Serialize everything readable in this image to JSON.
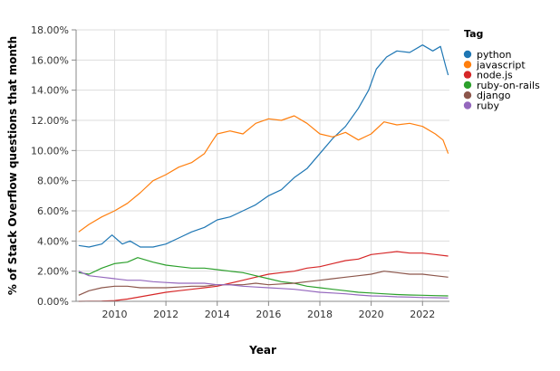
{
  "chart_data": {
    "type": "line",
    "xlabel": "Year",
    "ylabel": "% of Stack Overflow questions that month",
    "xlim": [
      2008.5,
      2023.05
    ],
    "ylim": [
      0,
      18
    ],
    "x_ticks": [
      {
        "value": 2010,
        "label": "2010"
      },
      {
        "value": 2012,
        "label": "2012"
      },
      {
        "value": 2014,
        "label": "2014"
      },
      {
        "value": 2016,
        "label": "2016"
      },
      {
        "value": 2018,
        "label": "2018"
      },
      {
        "value": 2020,
        "label": "2020"
      },
      {
        "value": 2022,
        "label": "2022"
      }
    ],
    "y_ticks": [
      {
        "value": 0,
        "label": "0.00%"
      },
      {
        "value": 2,
        "label": "2.00%"
      },
      {
        "value": 4,
        "label": "4.00%"
      },
      {
        "value": 6,
        "label": "6.00%"
      },
      {
        "value": 8,
        "label": "8.00%"
      },
      {
        "value": 10,
        "label": "10.00%"
      },
      {
        "value": 12,
        "label": "12.00%"
      },
      {
        "value": 14,
        "label": "14.00%"
      },
      {
        "value": 16,
        "label": "16.00%"
      },
      {
        "value": 18,
        "label": "18.00%"
      }
    ],
    "grid": true,
    "legend": {
      "title": "Tag",
      "placement": "right"
    },
    "series": [
      {
        "name": "python",
        "color": "#1f77b4",
        "points": [
          [
            2008.6,
            3.7
          ],
          [
            2009.0,
            3.6
          ],
          [
            2009.5,
            3.8
          ],
          [
            2009.9,
            4.4
          ],
          [
            2010.3,
            3.8
          ],
          [
            2010.6,
            4.0
          ],
          [
            2011.0,
            3.6
          ],
          [
            2011.5,
            3.6
          ],
          [
            2012.0,
            3.8
          ],
          [
            2012.5,
            4.2
          ],
          [
            2013.0,
            4.6
          ],
          [
            2013.5,
            4.9
          ],
          [
            2014.0,
            5.4
          ],
          [
            2014.5,
            5.6
          ],
          [
            2015.0,
            6.0
          ],
          [
            2015.5,
            6.4
          ],
          [
            2016.0,
            7.0
          ],
          [
            2016.5,
            7.4
          ],
          [
            2017.0,
            8.2
          ],
          [
            2017.5,
            8.8
          ],
          [
            2018.0,
            9.8
          ],
          [
            2018.5,
            10.8
          ],
          [
            2019.0,
            11.6
          ],
          [
            2019.5,
            12.8
          ],
          [
            2019.9,
            14.0
          ],
          [
            2020.2,
            15.4
          ],
          [
            2020.6,
            16.2
          ],
          [
            2021.0,
            16.6
          ],
          [
            2021.5,
            16.5
          ],
          [
            2022.0,
            17.0
          ],
          [
            2022.4,
            16.6
          ],
          [
            2022.7,
            16.9
          ],
          [
            2022.9,
            15.6
          ],
          [
            2023.0,
            15.0
          ]
        ]
      },
      {
        "name": "javascript",
        "color": "#ff7f0e",
        "points": [
          [
            2008.6,
            4.6
          ],
          [
            2009.0,
            5.1
          ],
          [
            2009.5,
            5.6
          ],
          [
            2010.0,
            6.0
          ],
          [
            2010.5,
            6.5
          ],
          [
            2011.0,
            7.2
          ],
          [
            2011.5,
            8.0
          ],
          [
            2012.0,
            8.4
          ],
          [
            2012.5,
            8.9
          ],
          [
            2013.0,
            9.2
          ],
          [
            2013.5,
            9.8
          ],
          [
            2013.8,
            10.6
          ],
          [
            2014.0,
            11.1
          ],
          [
            2014.5,
            11.3
          ],
          [
            2015.0,
            11.1
          ],
          [
            2015.5,
            11.8
          ],
          [
            2016.0,
            12.1
          ],
          [
            2016.5,
            12.0
          ],
          [
            2017.0,
            12.3
          ],
          [
            2017.5,
            11.8
          ],
          [
            2018.0,
            11.1
          ],
          [
            2018.5,
            10.9
          ],
          [
            2019.0,
            11.2
          ],
          [
            2019.5,
            10.7
          ],
          [
            2020.0,
            11.1
          ],
          [
            2020.5,
            11.9
          ],
          [
            2021.0,
            11.7
          ],
          [
            2021.5,
            11.8
          ],
          [
            2022.0,
            11.6
          ],
          [
            2022.5,
            11.1
          ],
          [
            2022.8,
            10.7
          ],
          [
            2023.0,
            9.8
          ]
        ]
      },
      {
        "name": "node.js",
        "color": "#d62728",
        "points": [
          [
            2008.6,
            0.0
          ],
          [
            2009.5,
            0.02
          ],
          [
            2010.0,
            0.05
          ],
          [
            2010.5,
            0.15
          ],
          [
            2011.0,
            0.3
          ],
          [
            2011.5,
            0.45
          ],
          [
            2012.0,
            0.6
          ],
          [
            2012.5,
            0.7
          ],
          [
            2013.0,
            0.8
          ],
          [
            2013.5,
            0.9
          ],
          [
            2014.0,
            1.0
          ],
          [
            2014.5,
            1.2
          ],
          [
            2015.0,
            1.4
          ],
          [
            2015.5,
            1.6
          ],
          [
            2016.0,
            1.8
          ],
          [
            2016.5,
            1.9
          ],
          [
            2017.0,
            2.0
          ],
          [
            2017.5,
            2.2
          ],
          [
            2018.0,
            2.3
          ],
          [
            2018.5,
            2.5
          ],
          [
            2019.0,
            2.7
          ],
          [
            2019.5,
            2.8
          ],
          [
            2020.0,
            3.1
          ],
          [
            2020.5,
            3.2
          ],
          [
            2021.0,
            3.3
          ],
          [
            2021.5,
            3.2
          ],
          [
            2022.0,
            3.2
          ],
          [
            2022.5,
            3.1
          ],
          [
            2023.0,
            3.0
          ]
        ]
      },
      {
        "name": "ruby-on-rails",
        "color": "#2ca02c",
        "points": [
          [
            2008.6,
            1.9
          ],
          [
            2009.0,
            1.8
          ],
          [
            2009.5,
            2.2
          ],
          [
            2010.0,
            2.5
          ],
          [
            2010.5,
            2.6
          ],
          [
            2010.9,
            2.9
          ],
          [
            2011.5,
            2.6
          ],
          [
            2012.0,
            2.4
          ],
          [
            2012.5,
            2.3
          ],
          [
            2013.0,
            2.2
          ],
          [
            2013.5,
            2.2
          ],
          [
            2014.0,
            2.1
          ],
          [
            2014.5,
            2.0
          ],
          [
            2015.0,
            1.9
          ],
          [
            2015.5,
            1.7
          ],
          [
            2016.0,
            1.5
          ],
          [
            2016.5,
            1.3
          ],
          [
            2017.0,
            1.2
          ],
          [
            2017.5,
            1.0
          ],
          [
            2018.0,
            0.9
          ],
          [
            2018.5,
            0.8
          ],
          [
            2019.0,
            0.7
          ],
          [
            2019.5,
            0.6
          ],
          [
            2020.0,
            0.55
          ],
          [
            2020.5,
            0.5
          ],
          [
            2021.0,
            0.45
          ],
          [
            2021.5,
            0.42
          ],
          [
            2022.0,
            0.4
          ],
          [
            2022.5,
            0.38
          ],
          [
            2023.0,
            0.36
          ]
        ]
      },
      {
        "name": "django",
        "color": "#8c564b",
        "points": [
          [
            2008.6,
            0.4
          ],
          [
            2009.0,
            0.7
          ],
          [
            2009.5,
            0.9
          ],
          [
            2010.0,
            1.0
          ],
          [
            2010.5,
            1.0
          ],
          [
            2011.0,
            0.9
          ],
          [
            2011.5,
            0.9
          ],
          [
            2012.0,
            0.9
          ],
          [
            2012.5,
            0.95
          ],
          [
            2013.0,
            1.0
          ],
          [
            2013.5,
            1.0
          ],
          [
            2014.0,
            1.1
          ],
          [
            2014.5,
            1.1
          ],
          [
            2015.0,
            1.1
          ],
          [
            2015.5,
            1.2
          ],
          [
            2016.0,
            1.1
          ],
          [
            2016.5,
            1.15
          ],
          [
            2017.0,
            1.2
          ],
          [
            2017.5,
            1.3
          ],
          [
            2018.0,
            1.4
          ],
          [
            2018.5,
            1.5
          ],
          [
            2019.0,
            1.6
          ],
          [
            2019.5,
            1.7
          ],
          [
            2020.0,
            1.8
          ],
          [
            2020.5,
            2.0
          ],
          [
            2021.0,
            1.9
          ],
          [
            2021.5,
            1.8
          ],
          [
            2022.0,
            1.8
          ],
          [
            2022.5,
            1.7
          ],
          [
            2023.0,
            1.6
          ]
        ]
      },
      {
        "name": "ruby",
        "color": "#9467bd",
        "points": [
          [
            2008.6,
            2.0
          ],
          [
            2009.0,
            1.7
          ],
          [
            2009.5,
            1.6
          ],
          [
            2010.0,
            1.5
          ],
          [
            2010.5,
            1.4
          ],
          [
            2011.0,
            1.4
          ],
          [
            2011.5,
            1.3
          ],
          [
            2012.0,
            1.25
          ],
          [
            2012.5,
            1.2
          ],
          [
            2013.0,
            1.2
          ],
          [
            2013.5,
            1.2
          ],
          [
            2014.0,
            1.1
          ],
          [
            2014.5,
            1.1
          ],
          [
            2015.0,
            1.0
          ],
          [
            2015.5,
            0.95
          ],
          [
            2016.0,
            0.9
          ],
          [
            2016.5,
            0.85
          ],
          [
            2017.0,
            0.8
          ],
          [
            2017.5,
            0.7
          ],
          [
            2018.0,
            0.6
          ],
          [
            2018.5,
            0.55
          ],
          [
            2019.0,
            0.5
          ],
          [
            2019.5,
            0.42
          ],
          [
            2020.0,
            0.36
          ],
          [
            2020.5,
            0.34
          ],
          [
            2021.0,
            0.3
          ],
          [
            2021.5,
            0.28
          ],
          [
            2022.0,
            0.25
          ],
          [
            2022.5,
            0.24
          ],
          [
            2023.0,
            0.22
          ]
        ]
      }
    ]
  }
}
